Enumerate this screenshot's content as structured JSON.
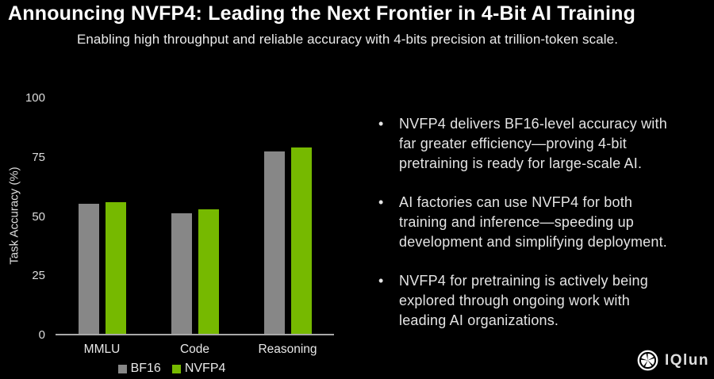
{
  "header": {
    "title": "Announcing NVFP4: Leading the Next Frontier in 4-Bit AI Training",
    "subtitle": "Enabling high throughput and reliable accuracy with 4-bits precision at trillion-token scale."
  },
  "chart_data": {
    "type": "bar",
    "title": "",
    "categories": [
      "MMLU",
      "Code",
      "Reasoning"
    ],
    "series": [
      {
        "name": "BF16",
        "color": "#878787",
        "values": [
          55,
          51,
          77
        ]
      },
      {
        "name": "NVFP4",
        "color": "#76b900",
        "values": [
          55.5,
          52.5,
          78.5
        ]
      }
    ],
    "xlabel": "",
    "ylabel": "Task Accuracy (%)",
    "ylim": [
      0,
      100
    ],
    "yticks": [
      0,
      25,
      50,
      75,
      100
    ],
    "grid": false,
    "legend_position": "bottom",
    "background": "#000000"
  },
  "bullets": {
    "marker": "•",
    "items": [
      {
        "text": "NVFP4 delivers BF16-level accuracy with\nfar greater efficiency—proving 4-bit\npretraining is ready for large-scale AI."
      },
      {
        "text": "AI factories can use NVFP4 for both\ntraining and inference—speeding up\ndevelopment and simplifying deployment."
      },
      {
        "text": "NVFP4 for pretraining is actively being\nexplored through ongoing work with\nleading AI organizations."
      }
    ]
  },
  "watermark": {
    "icon": "aperture-icon",
    "text": "IQlun"
  }
}
